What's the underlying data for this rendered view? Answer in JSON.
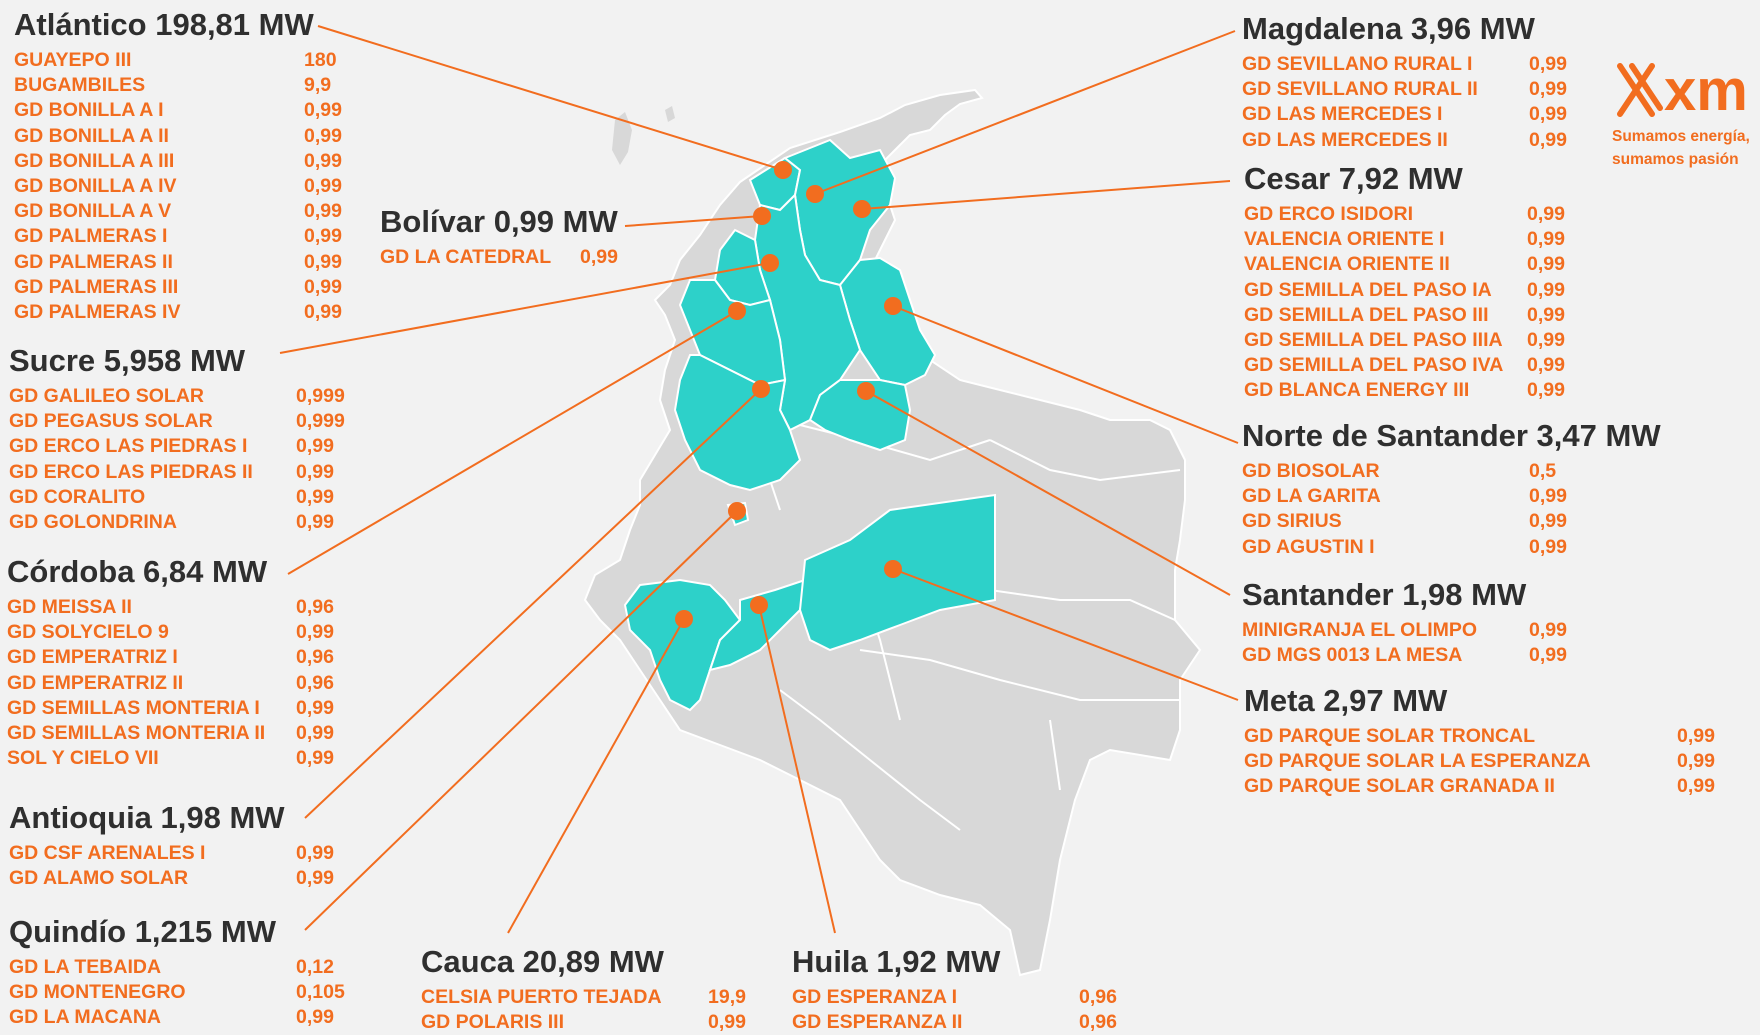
{
  "colors": {
    "highlight": "#2dd1c9",
    "land": "#d8d8d8",
    "accent": "#f26d1f",
    "text": "#2f2f2f"
  },
  "logo": {
    "brand": "xm",
    "slogan_line1": "Sumamos energía,",
    "slogan_line2": "sumamos pasión"
  },
  "regions": [
    {
      "title": "Atlántico 198,81 MW",
      "plants": [
        {
          "name": "GUAYEPO III",
          "value": "180"
        },
        {
          "name": "BUGAMBILES",
          "value": "9,9"
        },
        {
          "name": "GD BONILLA A I",
          "value": "0,99"
        },
        {
          "name": "GD BONILLA A II",
          "value": "0,99"
        },
        {
          "name": "GD BONILLA A III",
          "value": "0,99"
        },
        {
          "name": "GD BONILLA A IV",
          "value": "0,99"
        },
        {
          "name": "GD BONILLA A V",
          "value": "0,99"
        },
        {
          "name": "GD PALMERAS I",
          "value": "0,99"
        },
        {
          "name": "GD PALMERAS II",
          "value": "0,99"
        },
        {
          "name": "GD PALMERAS III",
          "value": "0,99"
        },
        {
          "name": "GD PALMERAS IV",
          "value": "0,99"
        }
      ]
    },
    {
      "title": "Bolívar 0,99 MW",
      "plants": [
        {
          "name": "GD LA CATEDRAL",
          "value": "0,99"
        }
      ]
    },
    {
      "title": "Sucre 5,958 MW",
      "plants": [
        {
          "name": "GD GALILEO SOLAR",
          "value": "0,999"
        },
        {
          "name": "GD PEGASUS SOLAR",
          "value": "0,999"
        },
        {
          "name": "GD ERCO LAS PIEDRAS I",
          "value": "0,99"
        },
        {
          "name": "GD ERCO LAS PIEDRAS II",
          "value": "0,99"
        },
        {
          "name": "GD CORALITO",
          "value": "0,99"
        },
        {
          "name": "GD GOLONDRINA",
          "value": "0,99"
        }
      ]
    },
    {
      "title": "Córdoba 6,84 MW",
      "plants": [
        {
          "name": "GD MEISSA II",
          "value": "0,96"
        },
        {
          "name": "GD SOLYCIELO 9",
          "value": "0,99"
        },
        {
          "name": "GD EMPERATRIZ I",
          "value": "0,96"
        },
        {
          "name": "GD EMPERATRIZ II",
          "value": "0,96"
        },
        {
          "name": "GD SEMILLAS MONTERIA I",
          "value": "0,99"
        },
        {
          "name": "GD SEMILLAS MONTERIA II",
          "value": "0,99"
        },
        {
          "name": "SOL Y CIELO VII",
          "value": "0,99"
        }
      ]
    },
    {
      "title": "Antioquia 1,98 MW",
      "plants": [
        {
          "name": "GD CSF ARENALES I",
          "value": "0,99"
        },
        {
          "name": "GD ALAMO SOLAR",
          "value": "0,99"
        }
      ]
    },
    {
      "title": "Quindío 1,215 MW",
      "plants": [
        {
          "name": "GD LA TEBAIDA",
          "value": "0,12"
        },
        {
          "name": "GD MONTENEGRO",
          "value": "0,105"
        },
        {
          "name": "GD LA MACANA",
          "value": "0,99"
        }
      ]
    },
    {
      "title": "Cauca 20,89 MW",
      "plants": [
        {
          "name": "CELSIA PUERTO TEJADA",
          "value": "19,9"
        },
        {
          "name": "GD POLARIS III",
          "value": "0,99"
        }
      ]
    },
    {
      "title": "Huila 1,92 MW",
      "plants": [
        {
          "name": "GD ESPERANZA I",
          "value": "0,96"
        },
        {
          "name": "GD ESPERANZA II",
          "value": "0,96"
        }
      ]
    },
    {
      "title": "Magdalena 3,96 MW",
      "plants": [
        {
          "name": "GD SEVILLANO RURAL I",
          "value": "0,99"
        },
        {
          "name": "GD SEVILLANO RURAL II",
          "value": "0,99"
        },
        {
          "name": "GD LAS MERCEDES I",
          "value": "0,99"
        },
        {
          "name": "GD LAS MERCEDES II",
          "value": "0,99"
        }
      ]
    },
    {
      "title": "Cesar 7,92 MW",
      "plants": [
        {
          "name": "GD ERCO ISIDORI",
          "value": "0,99"
        },
        {
          "name": "VALENCIA ORIENTE I",
          "value": "0,99"
        },
        {
          "name": "VALENCIA ORIENTE II",
          "value": "0,99"
        },
        {
          "name": "GD SEMILLA DEL PASO IA",
          "value": "0,99"
        },
        {
          "name": "GD SEMILLA DEL PASO III",
          "value": "0,99"
        },
        {
          "name": "GD SEMILLA DEL PASO IIIA",
          "value": "0,99"
        },
        {
          "name": "GD SEMILLA DEL PASO IVA",
          "value": "0,99"
        },
        {
          "name": "GD BLANCA ENERGY III",
          "value": "0,99"
        }
      ]
    },
    {
      "title": "Norte de Santander 3,47 MW",
      "plants": [
        {
          "name": "GD BIOSOLAR",
          "value": "0,5"
        },
        {
          "name": "GD LA GARITA",
          "value": "0,99"
        },
        {
          "name": "GD SIRIUS",
          "value": "0,99"
        },
        {
          "name": "GD AGUSTIN I",
          "value": "0,99"
        }
      ]
    },
    {
      "title": "Santander 1,98 MW",
      "plants": [
        {
          "name": "MINIGRANJA EL OLIMPO",
          "value": "0,99"
        },
        {
          "name": "GD MGS 0013 LA MESA",
          "value": "0,99"
        }
      ]
    },
    {
      "title": "Meta 2,97 MW",
      "plants": [
        {
          "name": "GD PARQUE SOLAR TRONCAL",
          "value": "0,99"
        },
        {
          "name": "GD PARQUE SOLAR LA ESPERANZA",
          "value": "0,99"
        },
        {
          "name": "GD PARQUE SOLAR GRANADA II",
          "value": "0,99"
        }
      ]
    }
  ]
}
